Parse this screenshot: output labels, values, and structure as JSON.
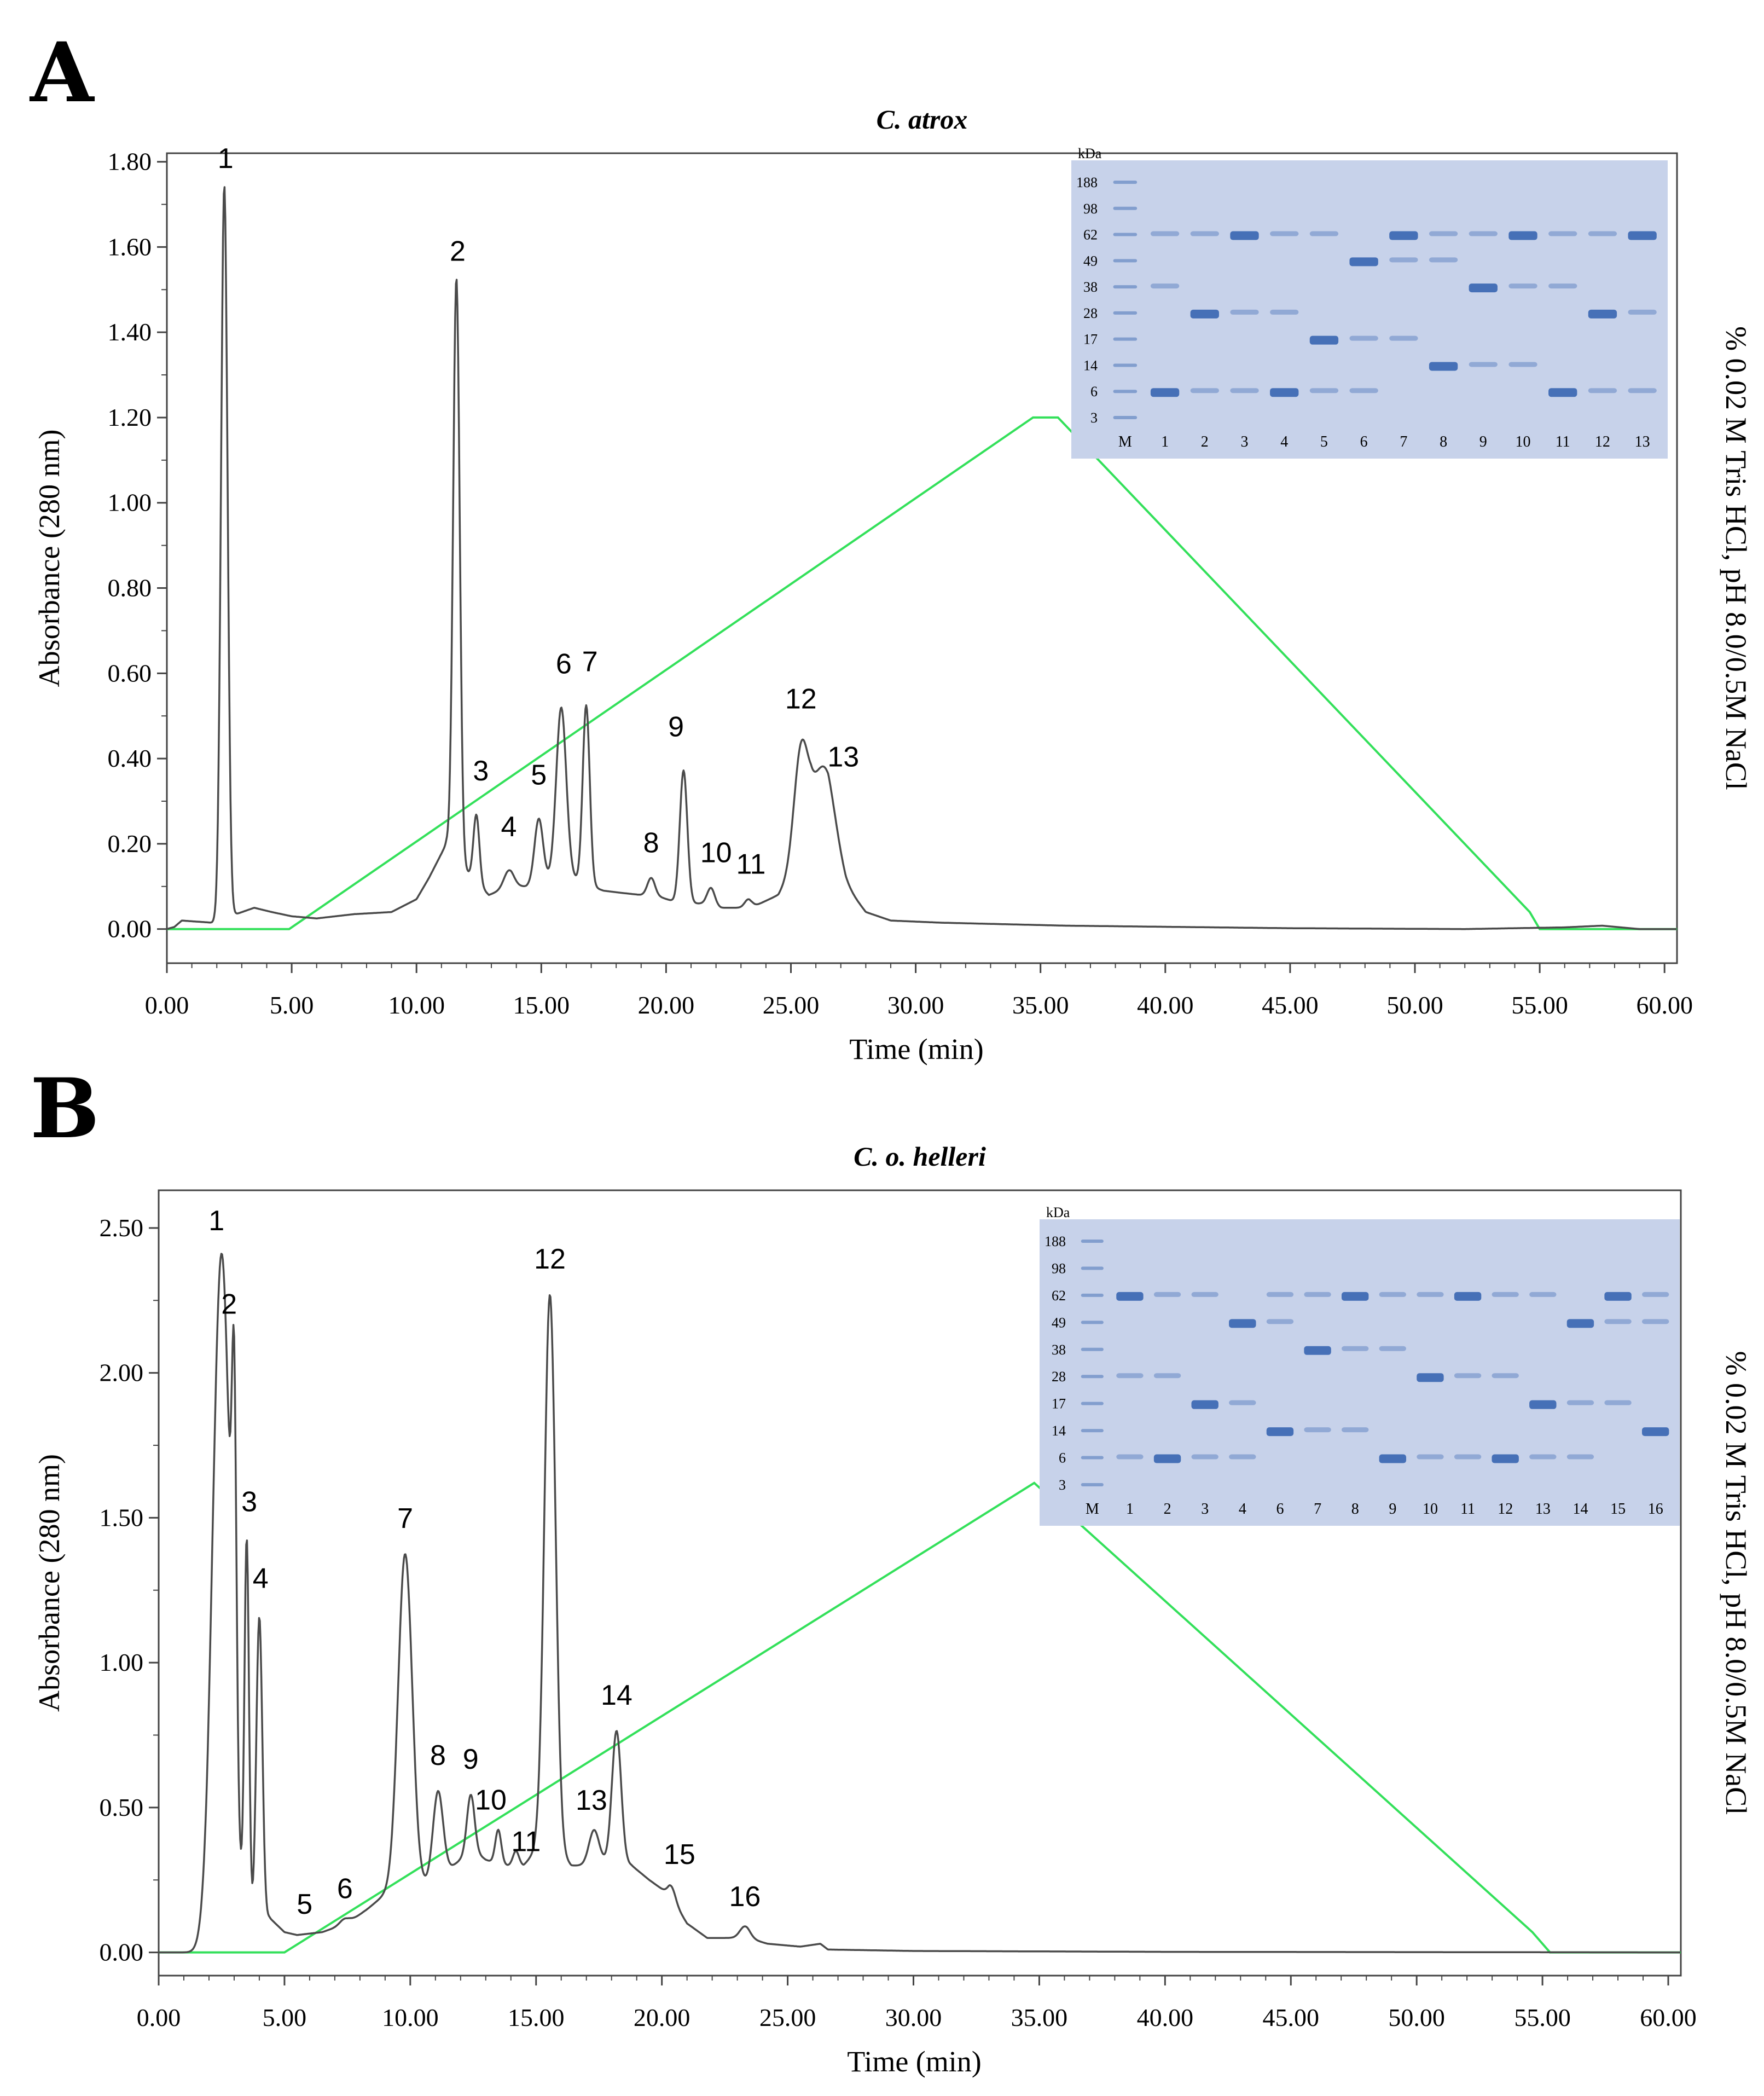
{
  "figure": {
    "panel_a_letter": "A",
    "panel_b_letter": "B"
  },
  "colors": {
    "trace": "#4a4a4a",
    "gradient": "#33e05a",
    "axis": "#444444",
    "gel_bg": "#c7d2ea",
    "band": "#2f5fae"
  },
  "chart_data": [
    {
      "type": "line",
      "panel": "A",
      "title": "C. atrox",
      "xlabel": "Time (min)",
      "ylabel": "Absorbance (280 nm)",
      "y2label": "% 0.02 M Tris HCl, pH 8.0/0.5M NaCl",
      "xlim": [
        0,
        60.5
      ],
      "ylim": [
        -0.08,
        1.82
      ],
      "xticks": [
        0,
        5,
        10,
        15,
        20,
        25,
        30,
        35,
        40,
        45,
        50,
        55,
        60
      ],
      "xtick_labels": [
        "0.00",
        "5.00",
        "10.00",
        "15.00",
        "20.00",
        "25.00",
        "30.00",
        "35.00",
        "40.00",
        "45.00",
        "50.00",
        "55.00",
        "60.00"
      ],
      "yticks": [
        0,
        0.2,
        0.4,
        0.6,
        0.8,
        1.0,
        1.2,
        1.4,
        1.6,
        1.8
      ],
      "ytick_labels": [
        "0.00",
        "0.20",
        "0.40",
        "0.60",
        "0.80",
        "1.00",
        "1.20",
        "1.40",
        "1.60",
        "1.80"
      ],
      "gradient_series": {
        "name": "gradient",
        "x": [
          0,
          4.9,
          34.7,
          35.7,
          54.6,
          55.0,
          60.5
        ],
        "y": [
          0,
          0,
          1.2,
          1.2,
          0.04,
          0,
          0
        ]
      },
      "baseline": [
        [
          0,
          0
        ],
        [
          0.3,
          0.005
        ],
        [
          0.6,
          0.02
        ],
        [
          1.8,
          0.015
        ],
        [
          3.5,
          0.05
        ],
        [
          4.2,
          0.04
        ],
        [
          5,
          0.03
        ],
        [
          6,
          0.025
        ],
        [
          7.5,
          0.035
        ],
        [
          9,
          0.04
        ],
        [
          10,
          0.07
        ],
        [
          10.5,
          0.12
        ],
        [
          11.2,
          0.2
        ],
        [
          12.2,
          0.12
        ],
        [
          12.9,
          0.08
        ],
        [
          13.8,
          0.1
        ],
        [
          14.4,
          0.1
        ],
        [
          15.5,
          0.12
        ],
        [
          16.2,
          0.12
        ],
        [
          17,
          0.1
        ],
        [
          17.5,
          0.09
        ],
        [
          18.2,
          0.085
        ],
        [
          19,
          0.08
        ],
        [
          19.5,
          0.08
        ],
        [
          20.3,
          0.065
        ],
        [
          21,
          0.06
        ],
        [
          21.6,
          0.06
        ],
        [
          22.2,
          0.05
        ],
        [
          22.8,
          0.05
        ],
        [
          23.4,
          0.05
        ],
        [
          24.5,
          0.08
        ],
        [
          25.8,
          0.2
        ],
        [
          26.5,
          0.2
        ],
        [
          27.2,
          0.1
        ],
        [
          28,
          0.04
        ],
        [
          29,
          0.02
        ],
        [
          31,
          0.015
        ],
        [
          36,
          0.008
        ],
        [
          45,
          0.002
        ],
        [
          52,
          0.0
        ],
        [
          56,
          0.004
        ],
        [
          57.5,
          0.008
        ],
        [
          59,
          0.0
        ],
        [
          60.5,
          0.0
        ]
      ],
      "peaks": [
        {
          "label": "1",
          "x": 2.3,
          "y": 1.72,
          "w": 0.13
        },
        {
          "label": "2",
          "x": 11.6,
          "y": 1.36,
          "w": 0.13
        },
        {
          "label": "3",
          "x": 12.4,
          "y": 0.16,
          "w": 0.12
        },
        {
          "label": "4",
          "x": 13.7,
          "y": 0.04,
          "w": 0.2
        },
        {
          "label": "5",
          "x": 14.9,
          "y": 0.15,
          "w": 0.17
        },
        {
          "label": "6",
          "x": 15.8,
          "y": 0.4,
          "w": 0.2
        },
        {
          "label": "7",
          "x": 16.8,
          "y": 0.42,
          "w": 0.14
        },
        {
          "label": "8",
          "x": 19.4,
          "y": 0.04,
          "w": 0.15
        },
        {
          "label": "9",
          "x": 20.7,
          "y": 0.31,
          "w": 0.15
        },
        {
          "label": "10",
          "x": 21.8,
          "y": 0.04,
          "w": 0.15
        },
        {
          "label": "11",
          "x": 23.3,
          "y": 0.02,
          "w": 0.15
        },
        {
          "label": "12",
          "x": 25.4,
          "y": 0.25,
          "w": 0.28
        },
        {
          "label": "13",
          "x": 26.3,
          "y": 0.18,
          "w": 0.45
        }
      ],
      "peak_label_offsets": [
        [
          0.05,
          0.04
        ],
        [
          0.05,
          0.04
        ],
        [
          0.18,
          0.08
        ],
        [
          0.0,
          0.08
        ],
        [
          0.0,
          0.08
        ],
        [
          0.1,
          0.08
        ],
        [
          0.15,
          0.08
        ],
        [
          0.0,
          0.06
        ],
        [
          -0.3,
          0.08
        ],
        [
          0.2,
          0.06
        ],
        [
          0.1,
          0.06
        ],
        [
          0.0,
          0.08
        ],
        [
          0.8,
          0.0
        ]
      ],
      "gel": {
        "mw_unit": "kDa",
        "markers": [
          "188",
          "98",
          "62",
          "49",
          "38",
          "28",
          "17",
          "14",
          "6",
          "3"
        ],
        "lanes": [
          "M",
          "1",
          "2",
          "3",
          "4",
          "5",
          "6",
          "7",
          "8",
          "9",
          "10",
          "11",
          "12",
          "13"
        ]
      }
    },
    {
      "type": "line",
      "panel": "B",
      "title": "C. o. helleri",
      "xlabel": "Time (min)",
      "ylabel": "Absorbance (280 nm)",
      "y2label": "% 0.02 M Tris HCl, pH 8.0/0.5M NaCl",
      "xlim": [
        0,
        60.5
      ],
      "ylim": [
        -0.08,
        2.63
      ],
      "xticks": [
        0,
        5,
        10,
        15,
        20,
        25,
        30,
        35,
        40,
        45,
        50,
        55,
        60
      ],
      "xtick_labels": [
        "0.00",
        "5.00",
        "10.00",
        "15.00",
        "20.00",
        "25.00",
        "30.00",
        "35.00",
        "40.00",
        "45.00",
        "50.00",
        "55.00",
        "60.00"
      ],
      "yticks": [
        0,
        0.5,
        1.0,
        1.5,
        2.0,
        2.5
      ],
      "ytick_labels": [
        "0.00",
        "0.50",
        "1.00",
        "1.50",
        "2.00",
        "2.50"
      ],
      "gradient_series": {
        "name": "gradient",
        "x": [
          0,
          5.0,
          34.8,
          54.6,
          55.3,
          60.5
        ],
        "y": [
          0,
          0,
          1.62,
          0.07,
          0,
          0
        ]
      },
      "baseline": [
        [
          0,
          0
        ],
        [
          1.9,
          0
        ],
        [
          2.1,
          0.05
        ],
        [
          4.4,
          0.12
        ],
        [
          5,
          0.07
        ],
        [
          5.5,
          0.06
        ],
        [
          6.5,
          0.07
        ],
        [
          7.5,
          0.1
        ],
        [
          8.3,
          0.15
        ],
        [
          9,
          0.2
        ],
        [
          9.7,
          0.25
        ],
        [
          10.3,
          0.22
        ],
        [
          11,
          0.25
        ],
        [
          12,
          0.32
        ],
        [
          12.5,
          0.35
        ],
        [
          13,
          0.32
        ],
        [
          13.6,
          0.3
        ],
        [
          14.5,
          0.3
        ],
        [
          15,
          0.35
        ],
        [
          15.8,
          0.35
        ],
        [
          16.4,
          0.3
        ],
        [
          17.2,
          0.3
        ],
        [
          18,
          0.32
        ],
        [
          18.8,
          0.3
        ],
        [
          19.5,
          0.25
        ],
        [
          20.3,
          0.2
        ],
        [
          21,
          0.1
        ],
        [
          21.8,
          0.05
        ],
        [
          22.6,
          0.05
        ],
        [
          23.4,
          0.05
        ],
        [
          24.2,
          0.03
        ],
        [
          25.5,
          0.02
        ],
        [
          26.3,
          0.03
        ],
        [
          26.6,
          0.01
        ],
        [
          30,
          0.005
        ],
        [
          40,
          0.002
        ],
        [
          60.5,
          0
        ]
      ],
      "peaks": [
        {
          "label": "1",
          "x": 2.5,
          "y": 2.35,
          "w": 0.35
        },
        {
          "label": "2",
          "x": 3.0,
          "y": 1.2,
          "w": 0.09
        },
        {
          "label": "3",
          "x": 3.5,
          "y": 1.3,
          "w": 0.09
        },
        {
          "label": "4",
          "x": 4.0,
          "y": 1.05,
          "w": 0.12
        },
        {
          "label": "5",
          "x": 5.8,
          "y": 0.0,
          "w": 0.2
        },
        {
          "label": "6",
          "x": 7.4,
          "y": 0.02,
          "w": 0.2
        },
        {
          "label": "7",
          "x": 9.8,
          "y": 1.13,
          "w": 0.28
        },
        {
          "label": "8",
          "x": 11.1,
          "y": 0.3,
          "w": 0.2
        },
        {
          "label": "9",
          "x": 12.4,
          "y": 0.2,
          "w": 0.15
        },
        {
          "label": "10",
          "x": 13.5,
          "y": 0.12,
          "w": 0.12
        },
        {
          "label": "11",
          "x": 14.2,
          "y": 0.05,
          "w": 0.12
        },
        {
          "label": "12",
          "x": 15.55,
          "y": 1.92,
          "w": 0.22
        },
        {
          "label": "13",
          "x": 17.3,
          "y": 0.12,
          "w": 0.2
        },
        {
          "label": "14",
          "x": 18.2,
          "y": 0.45,
          "w": 0.18
        },
        {
          "label": "15",
          "x": 20.4,
          "y": 0.04,
          "w": 0.15
        },
        {
          "label": "16",
          "x": 23.3,
          "y": 0.04,
          "w": 0.2
        }
      ],
      "peak_label_offsets": [
        [
          -0.2,
          0.08
        ],
        [
          -0.2,
          0.08
        ],
        [
          0.1,
          0.09
        ],
        [
          0.05,
          0.1
        ],
        [
          0.0,
          0.07
        ],
        [
          0.0,
          0.07
        ],
        [
          0.0,
          0.09
        ],
        [
          0.0,
          0.09
        ],
        [
          0.0,
          0.09
        ],
        [
          -0.3,
          0.07
        ],
        [
          0.4,
          0.0
        ],
        [
          0.0,
          0.09
        ],
        [
          -0.1,
          0.07
        ],
        [
          0.0,
          0.09
        ],
        [
          0.3,
          0.08
        ],
        [
          0.0,
          0.07
        ]
      ],
      "gel": {
        "mw_unit": "kDa",
        "markers": [
          "188",
          "98",
          "62",
          "49",
          "38",
          "28",
          "17",
          "14",
          "6",
          "3"
        ],
        "lanes": [
          "M",
          "1",
          "2",
          "3",
          "4",
          "6",
          "7",
          "8",
          "9",
          "10",
          "11",
          "12",
          "13",
          "14",
          "15",
          "16"
        ]
      }
    }
  ]
}
